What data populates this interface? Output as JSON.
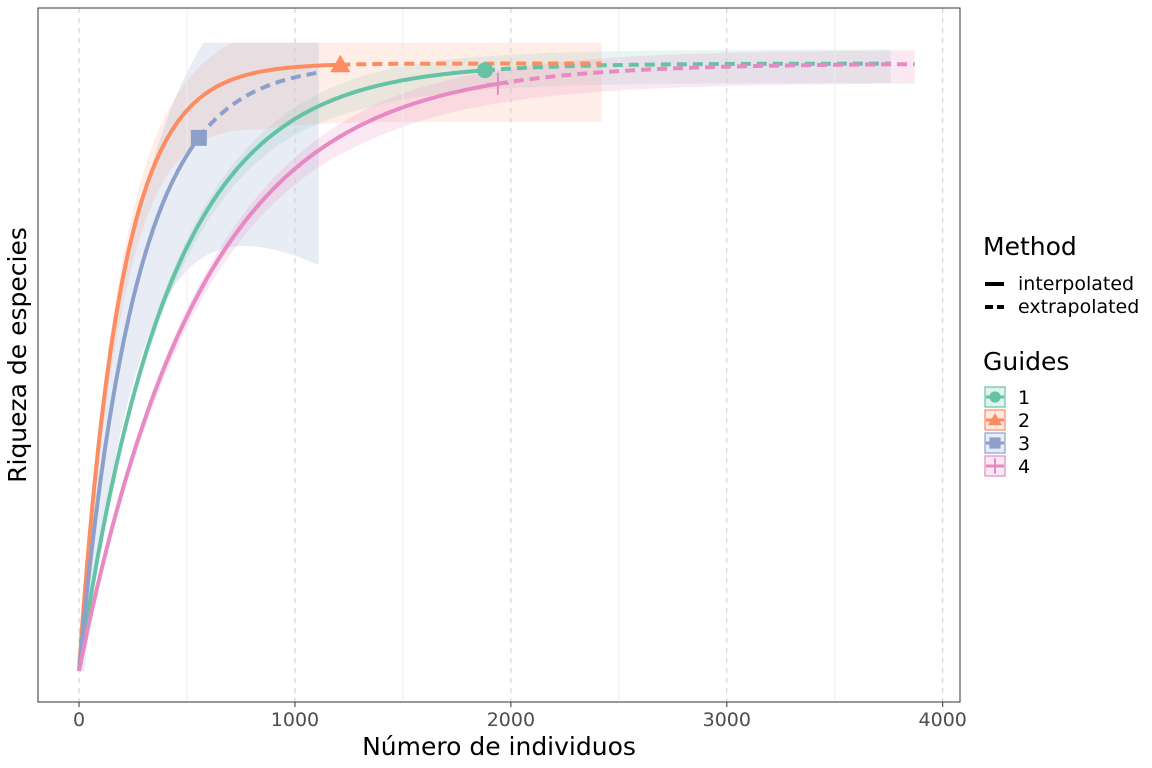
{
  "chart_data": {
    "type": "line",
    "xlabel": "Número de individuos",
    "ylabel": "Riqueza de especies",
    "xlim": [
      -190,
      4080
    ],
    "x_ticks": [
      0,
      1000,
      2000,
      3000,
      4000
    ],
    "x_tick_labels": [
      "0",
      "1000",
      "2000",
      "3000",
      "4000"
    ],
    "y_ticks_shown": false,
    "grid": "vertical dashed major, vertical minor",
    "legend_position": "right",
    "legend": {
      "method_title": "Method",
      "methods": [
        "interpolated",
        "extrapolated"
      ],
      "group_title": "Guides",
      "groups": [
        "1",
        "2",
        "3",
        "4"
      ]
    },
    "series": [
      {
        "name": "1",
        "color": "#66c2a5",
        "marker": "circle",
        "observed_n": 1880,
        "extrapolated_to": 3760,
        "asymptote_fraction": 0.92,
        "rate": 4.5,
        "band_fraction": 0.02,
        "band_alpha": 0.15
      },
      {
        "name": "2",
        "color": "#fc8d62",
        "marker": "triangle",
        "observed_n": 1210,
        "extrapolated_to": 2420,
        "asymptote_fraction": 0.92,
        "rate": 6.2,
        "band_fraction": 0.06,
        "band_alpha": 0.15
      },
      {
        "name": "3",
        "color": "#8da0cb",
        "marker": "square",
        "observed_n": 555,
        "extrapolated_to": 1110,
        "asymptote_fraction": 0.92,
        "rate": 2.1,
        "band_fraction": 0.09,
        "band_alpha": 0.2
      },
      {
        "name": "4",
        "color": "#e78ac3",
        "marker": "cross",
        "observed_n": 1940,
        "extrapolated_to": 3870,
        "asymptote_fraction": 0.92,
        "rate": 3.4,
        "band_fraction": 0.02,
        "band_alpha": 0.2
      }
    ]
  }
}
